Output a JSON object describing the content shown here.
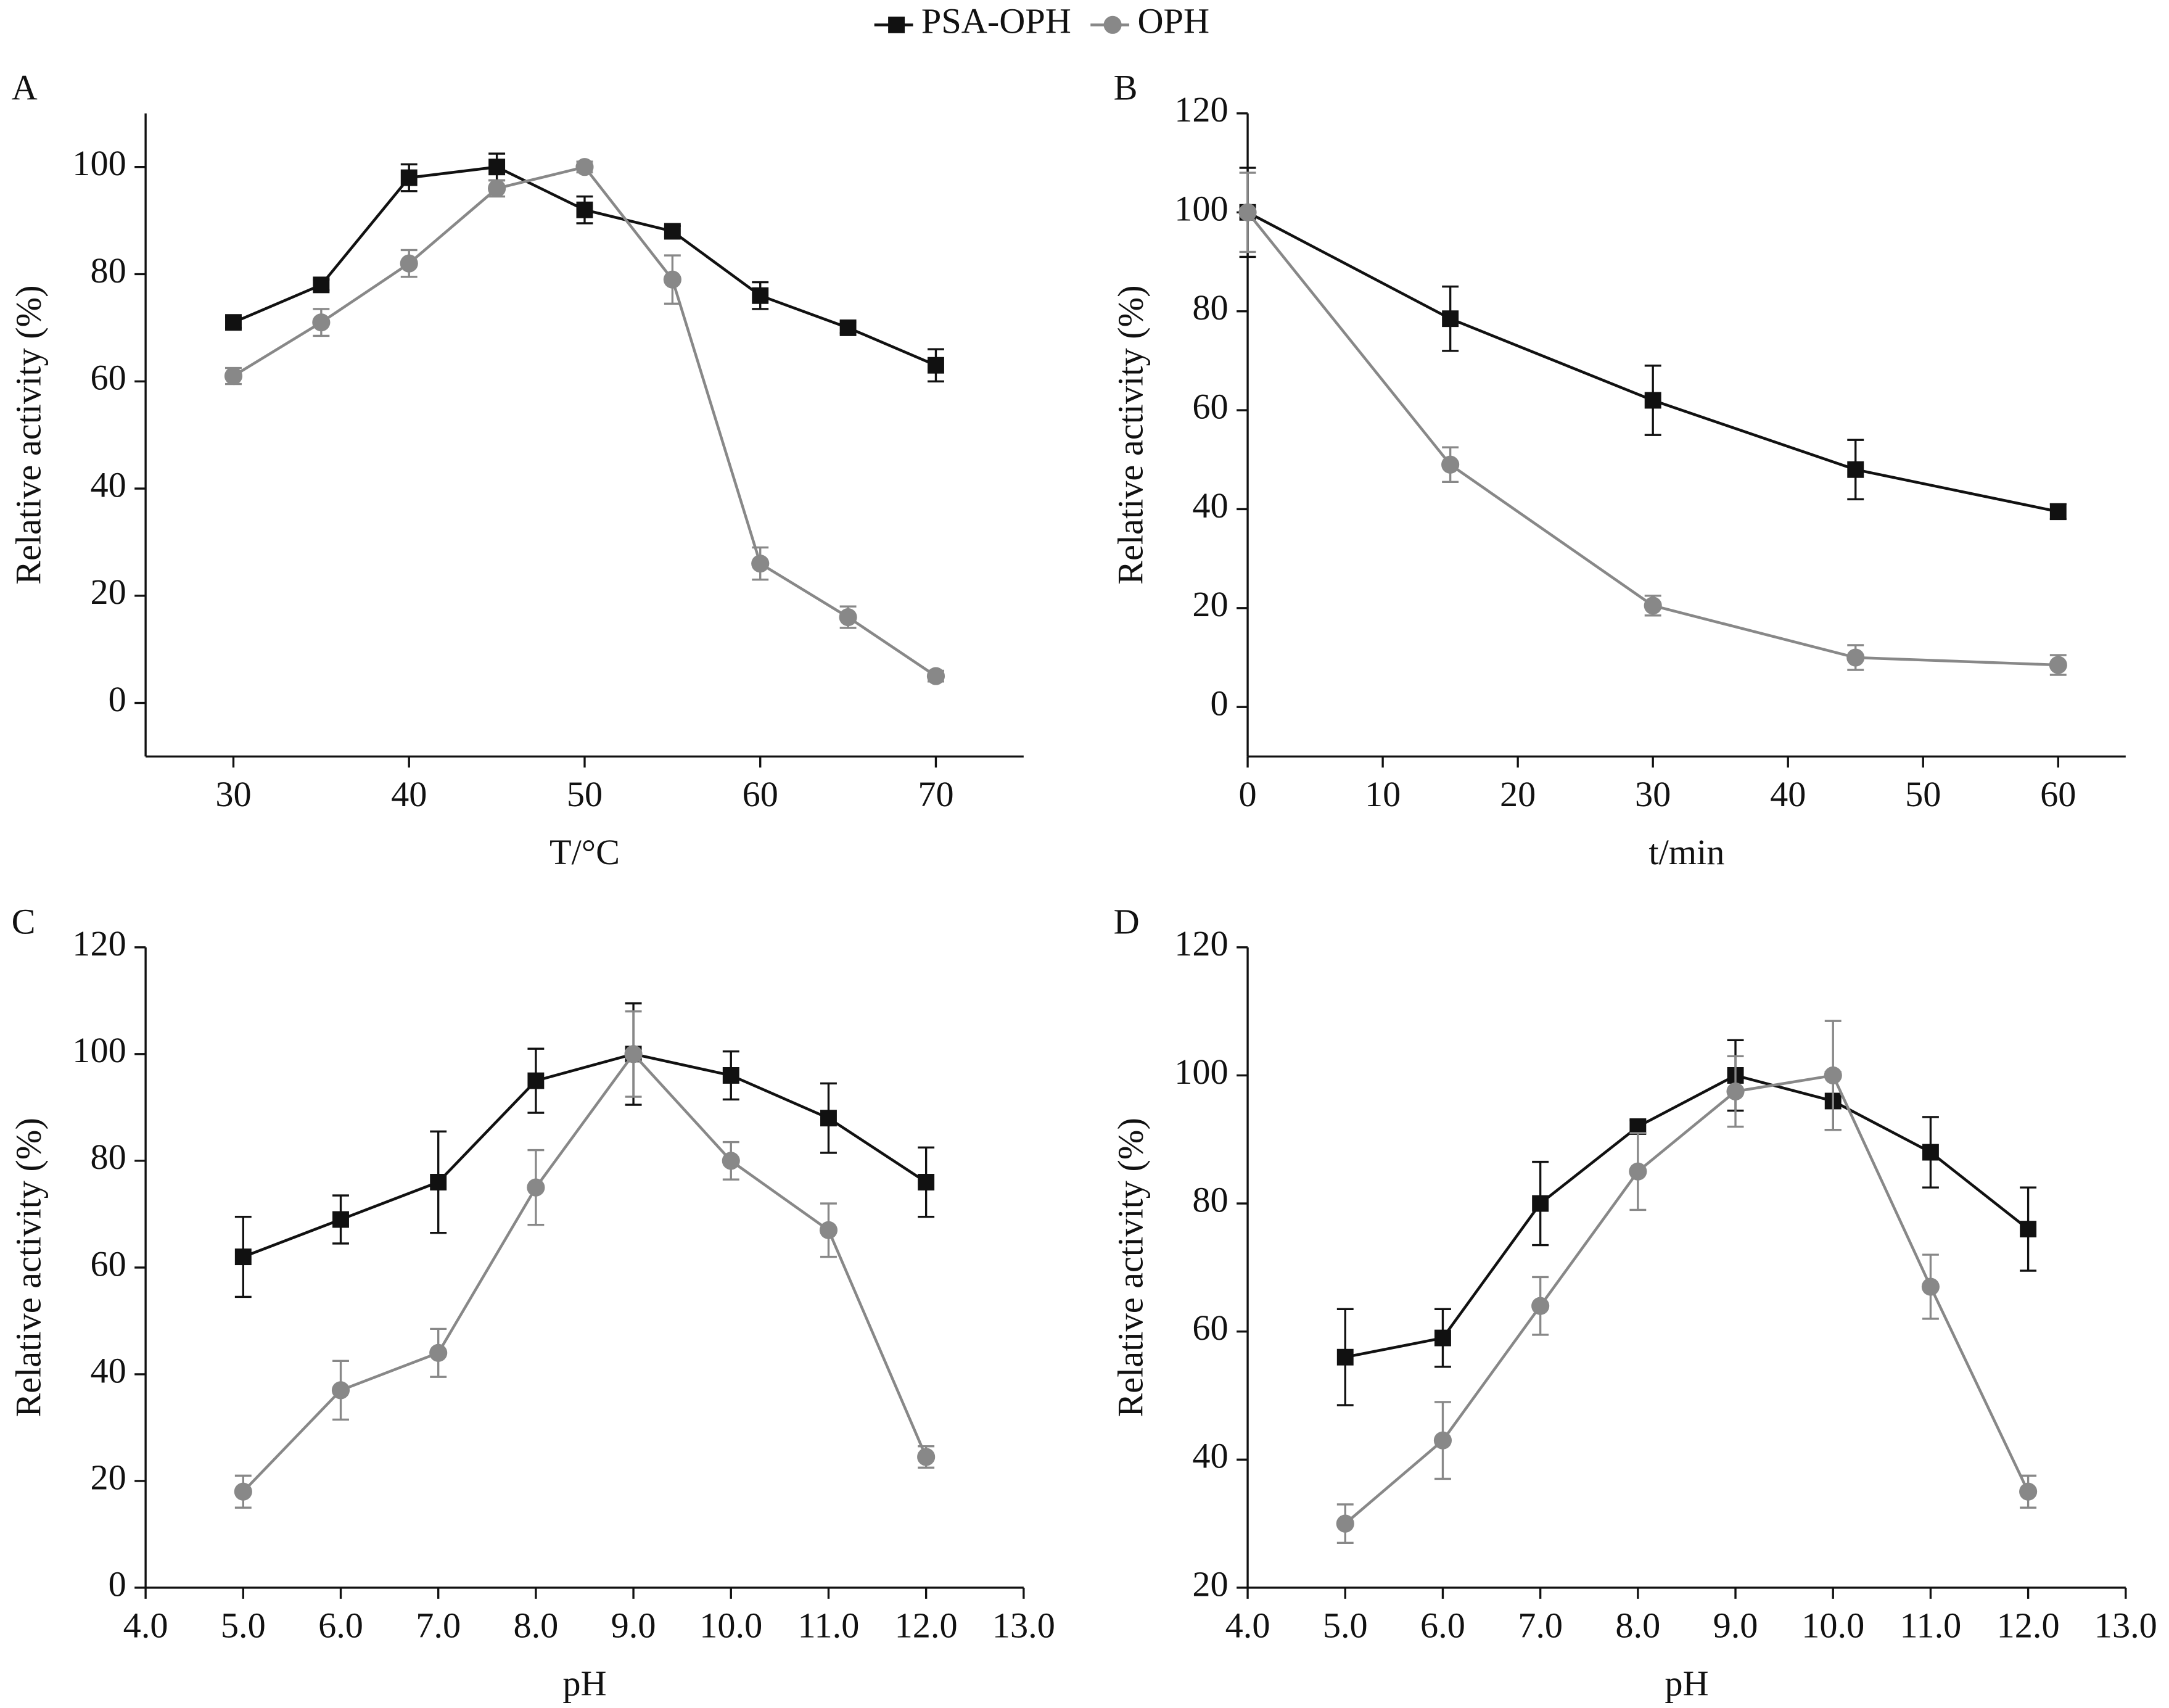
{
  "chart_data": [
    {
      "type": "line",
      "panel_label": "A",
      "xlabel": "T/°C",
      "ylabel": "Relative activity (%)",
      "x": [
        30,
        35,
        40,
        45,
        50,
        55,
        60,
        65,
        70
      ],
      "xlim": [
        25,
        75
      ],
      "xticks": [
        30,
        40,
        50,
        60,
        70
      ],
      "ylim": [
        -10,
        110
      ],
      "yticks": [
        0,
        20,
        40,
        60,
        80,
        100
      ],
      "series": [
        {
          "name": "PSA-OPH",
          "color": "#111111",
          "marker": "square",
          "values": [
            71,
            78,
            98,
            100,
            92,
            88,
            76,
            70,
            63
          ],
          "errors": [
            1,
            1,
            2.5,
            2.5,
            2.5,
            1,
            2.5,
            1,
            3
          ]
        },
        {
          "name": "OPH",
          "color": "#888888",
          "marker": "circle",
          "values": [
            61,
            71,
            82,
            96,
            100,
            79,
            26,
            16,
            5
          ],
          "errors": [
            1.5,
            2.5,
            2.5,
            1.5,
            1,
            4.5,
            3,
            2,
            1
          ]
        }
      ]
    },
    {
      "type": "line",
      "panel_label": "B",
      "xlabel": "t/min",
      "ylabel": "Relative activity (%)",
      "x": [
        0,
        15,
        30,
        45,
        60
      ],
      "xlim": [
        0,
        65
      ],
      "xticks": [
        0,
        10,
        20,
        30,
        40,
        50,
        60
      ],
      "ylim": [
        -10,
        120
      ],
      "yticks": [
        0,
        20,
        40,
        60,
        80,
        100,
        120
      ],
      "series": [
        {
          "color": "#111111",
          "marker": "square",
          "values": [
            100,
            78.5,
            62,
            48,
            39.5
          ],
          "errors": [
            9,
            6.5,
            7,
            6,
            1.5
          ]
        },
        {
          "color": "#888888",
          "marker": "circle",
          "values": [
            100,
            49,
            20.5,
            10,
            8.5
          ],
          "errors": [
            8,
            3.5,
            2,
            2.5,
            2
          ]
        }
      ]
    },
    {
      "type": "line",
      "panel_label": "C",
      "xlabel": "pH",
      "ylabel": "Relative activity (%)",
      "x": [
        5,
        6,
        7,
        8,
        9,
        10,
        11,
        12
      ],
      "xlim": [
        4,
        13
      ],
      "xticks": [
        {
          "value": 4,
          "label": "4.0"
        },
        {
          "value": 5,
          "label": "5.0"
        },
        {
          "value": 6,
          "label": "6.0"
        },
        {
          "value": 7,
          "label": "7.0"
        },
        {
          "value": 8,
          "label": "8.0"
        },
        {
          "value": 9,
          "label": "9.0"
        },
        {
          "value": 10,
          "label": "10.0"
        },
        {
          "value": 11,
          "label": "11.0"
        },
        {
          "value": 12,
          "label": "12.0"
        },
        {
          "value": 13,
          "label": "13.0"
        }
      ],
      "ylim": [
        0,
        120
      ],
      "yticks": [
        0,
        20,
        40,
        60,
        80,
        100,
        120
      ],
      "series": [
        {
          "color": "#111111",
          "marker": "square",
          "values": [
            62,
            69,
            76,
            95,
            100,
            96,
            88,
            76
          ],
          "errors": [
            7.5,
            4.5,
            9.5,
            6,
            9.5,
            4.5,
            6.5,
            6.5
          ]
        },
        {
          "color": "#888888",
          "marker": "circle",
          "values": [
            18,
            37,
            44,
            75,
            100,
            80,
            67,
            24.5
          ],
          "errors": [
            3,
            5.5,
            4.5,
            7,
            8,
            3.5,
            5,
            2
          ]
        }
      ]
    },
    {
      "type": "line",
      "panel_label": "D",
      "xlabel": "pH",
      "ylabel": "Relative activity (%)",
      "x": [
        5,
        6,
        7,
        8,
        9,
        10,
        11,
        12
      ],
      "xlim": [
        4,
        13
      ],
      "xticks": [
        {
          "value": 4,
          "label": "4.0"
        },
        {
          "value": 5,
          "label": "5.0"
        },
        {
          "value": 6,
          "label": "6.0"
        },
        {
          "value": 7,
          "label": "7.0"
        },
        {
          "value": 8,
          "label": "8.0"
        },
        {
          "value": 9,
          "label": "9.0"
        },
        {
          "value": 10,
          "label": "10.0"
        },
        {
          "value": 11,
          "label": "11.0"
        },
        {
          "value": 12,
          "label": "12.0"
        },
        {
          "value": 13,
          "label": "13.0"
        }
      ],
      "ylim": [
        20,
        120
      ],
      "yticks": [
        20,
        40,
        60,
        80,
        100,
        120
      ],
      "series": [
        {
          "color": "#111111",
          "marker": "square",
          "values": [
            56,
            59,
            80,
            92,
            100,
            96,
            88,
            76
          ],
          "errors": [
            7.5,
            4.5,
            6.5,
            1,
            5.5,
            4.5,
            5.5,
            6.5
          ]
        },
        {
          "color": "#888888",
          "marker": "circle",
          "values": [
            30,
            43,
            64,
            85,
            97.5,
            100,
            67,
            35
          ],
          "errors": [
            3,
            6,
            4.5,
            6,
            5.5,
            8.5,
            5,
            2.5
          ]
        }
      ]
    }
  ]
}
